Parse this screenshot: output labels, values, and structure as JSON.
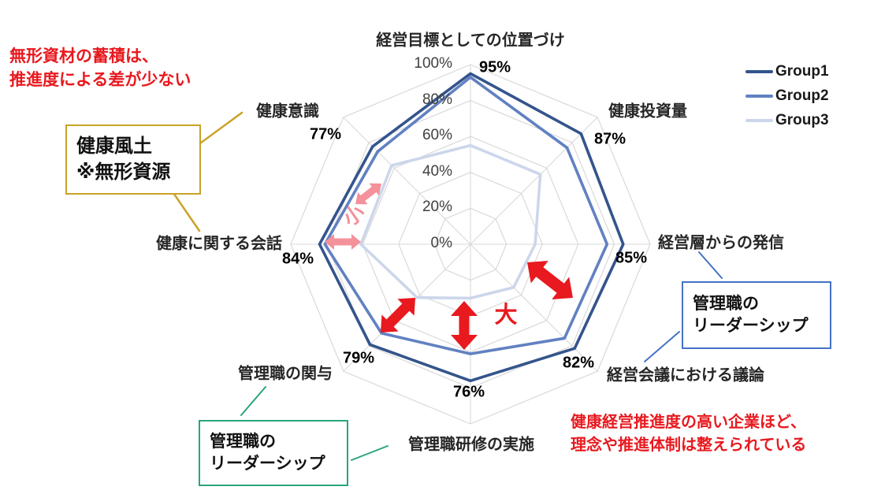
{
  "chart_data": {
    "type": "radar",
    "categories": [
      "経営目標としての位置づけ",
      "健康投資量",
      "経営層からの発信",
      "経営会議における議論",
      "管理職研修の実施",
      "管理職の関与",
      "健康に関する会話",
      "健康意識"
    ],
    "series": [
      {
        "name": "Group1",
        "color": "#34548c",
        "values": [
          95,
          87,
          85,
          82,
          76,
          79,
          84,
          77
        ]
      },
      {
        "name": "Group2",
        "color": "#6181c1",
        "values": [
          93,
          76,
          76,
          74,
          61,
          70,
          81,
          73
        ]
      },
      {
        "name": "Group3",
        "color": "#ccd6eb",
        "values": [
          55,
          55,
          36,
          34,
          30,
          42,
          61,
          62
        ]
      }
    ],
    "data_labels": [
      "95%",
      "87%",
      "85%",
      "82%",
      "76%",
      "79%",
      "84%",
      "77%"
    ],
    "axis_ticks": [
      "0%",
      "20%",
      "40%",
      "60%",
      "80%",
      "100%"
    ],
    "axis_range": [
      0,
      100
    ],
    "grid": true,
    "grid_color": "#d9d9d9",
    "legend_position": "top-right"
  },
  "annotations": {
    "note_top_left": {
      "line1": "無形資材の蓄積は、",
      "line2": "推進度による差が少ない",
      "color": "#e8191f"
    },
    "note_bottom_right": {
      "line1": "健康経営推進度の高い企業ほど、",
      "line2": "理念や推進体制は整えられている",
      "color": "#e8191f"
    },
    "box_yellow": {
      "line1": "健康風土",
      "line2": "※無形資源",
      "border_color": "#c9a227"
    },
    "box_blue": {
      "line1": "管理職の",
      "line2": "リーダーシップ",
      "border_color": "#4472c4"
    },
    "box_green": {
      "line1": "管理職の",
      "line2": "リーダーシップ",
      "border_color": "#28a57c"
    },
    "label_large": {
      "text": "大",
      "color": "#e8191f"
    },
    "label_small": {
      "text": "小",
      "color": "#f4919b"
    },
    "arrow_colors": {
      "large": "#e8191f",
      "small": "#f4919b"
    }
  }
}
